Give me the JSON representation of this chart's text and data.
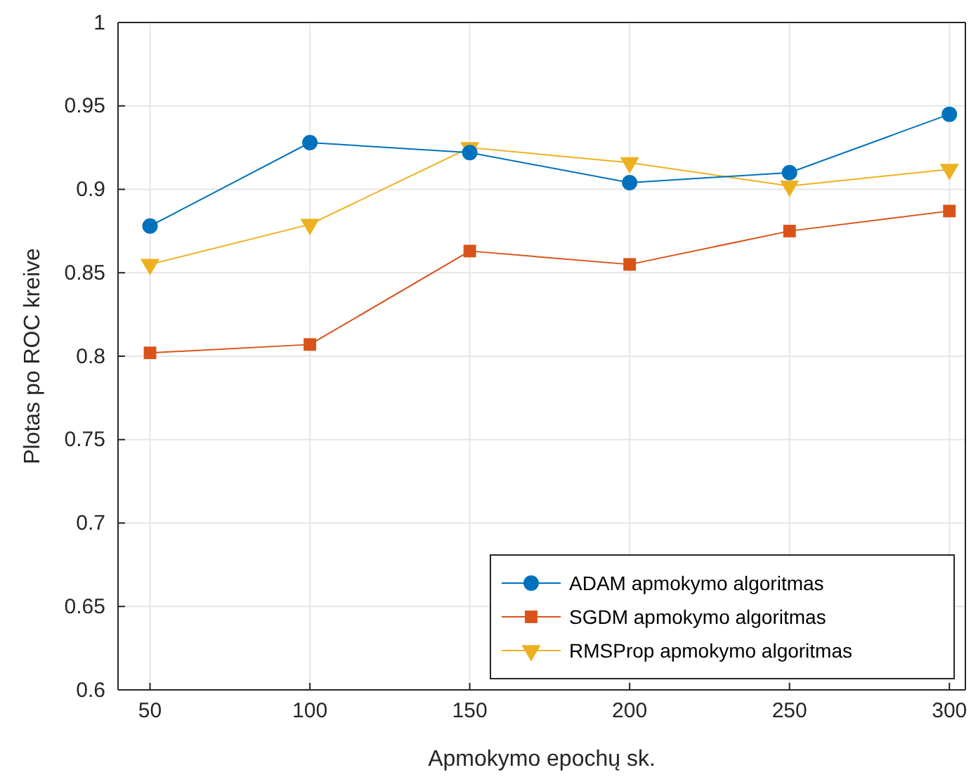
{
  "chart_data": {
    "type": "line",
    "xlabel": "Apmokymo epochų sk.",
    "ylabel": "Plotas po ROC kreive",
    "x": [
      50,
      100,
      150,
      200,
      250,
      300
    ],
    "xlim": [
      40,
      305
    ],
    "xticks": [
      50,
      100,
      150,
      200,
      250,
      300
    ],
    "ylim": [
      0.6,
      1
    ],
    "yticks": [
      0.6,
      0.65,
      0.7,
      0.75,
      0.8,
      0.85,
      0.9,
      0.95,
      1
    ],
    "grid": true,
    "legend": "bottom right",
    "line_style": "solid",
    "series": [
      {
        "name": "ADAM apmokymo algoritmas",
        "color": "#0072bd",
        "marker": "circle",
        "values": [
          0.878,
          0.928,
          0.922,
          0.904,
          0.91,
          0.945
        ]
      },
      {
        "name": "SGDM apmokymo algoritmas",
        "color": "#d95319",
        "marker": "square",
        "values": [
          0.802,
          0.807,
          0.863,
          0.855,
          0.875,
          0.887
        ]
      },
      {
        "name": "RMSProp apmokymo algoritmas",
        "color": "#edb120",
        "marker": "triangle",
        "values": [
          0.855,
          0.879,
          0.925,
          0.916,
          0.902,
          0.912
        ]
      }
    ]
  }
}
